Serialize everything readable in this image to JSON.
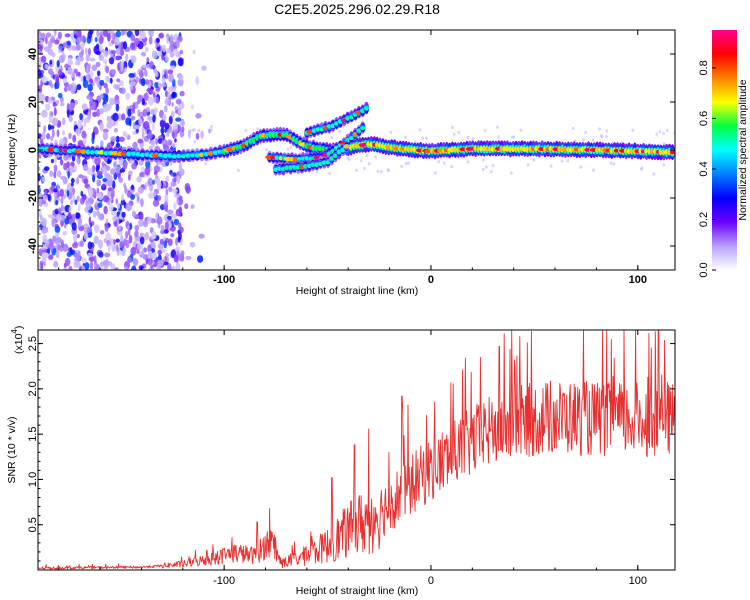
{
  "chart_data": [
    {
      "type": "heatmap",
      "title": "C2E5.2025.296.02.29.R18",
      "xlabel": "Height of straight line (km)",
      "ylabel": "Frequency (Hz)",
      "xlim": [
        -190,
        118
      ],
      "ylim": [
        -50,
        50
      ],
      "xticks": [
        -100,
        0,
        100
      ],
      "xtick_labels": [
        "-100",
        "0",
        "100"
      ],
      "yticks": [
        -40,
        -20,
        0,
        20,
        40
      ],
      "ytick_labels": [
        "-40",
        "-20",
        "0",
        "20",
        "40"
      ],
      "colorbar": {
        "label": "Normalized spectral amplitude",
        "range": [
          0,
          0.95
        ],
        "ticks": [
          0.0,
          0.2,
          0.4,
          0.6,
          0.8
        ],
        "tick_labels": [
          "0.0",
          "0.2",
          "0.4",
          "0.6",
          "0.8"
        ],
        "colormap": [
          "#ffffff",
          "#b8a0ff",
          "#6a00ff",
          "#0000ff",
          "#0080ff",
          "#00ffff",
          "#00ff40",
          "#ffff00",
          "#ff8000",
          "#ff0000",
          "#ff0090"
        ]
      },
      "ridge": [
        {
          "x": -190,
          "f": 0.5
        },
        {
          "x": -160,
          "f": -1.0
        },
        {
          "x": -140,
          "f": -2.0
        },
        {
          "x": -125,
          "f": -2.5
        },
        {
          "x": -110,
          "f": -2.0
        },
        {
          "x": -100,
          "f": -0.5
        },
        {
          "x": -90,
          "f": 2.0
        },
        {
          "x": -82,
          "f": 6.0
        },
        {
          "x": -70,
          "f": 6.5
        },
        {
          "x": -60,
          "f": 1.5
        },
        {
          "x": -50,
          "f": 0.0
        },
        {
          "x": -40,
          "f": 1.0
        },
        {
          "x": -30,
          "f": 2.5
        },
        {
          "x": -15,
          "f": 0.5
        },
        {
          "x": 0,
          "f": -0.5
        },
        {
          "x": 20,
          "f": 0.5
        },
        {
          "x": 50,
          "f": 0.5
        },
        {
          "x": 80,
          "f": 0.0
        },
        {
          "x": 118,
          "f": -1.0
        }
      ],
      "branches": [
        [
          {
            "x": -78,
            "f": -3
          },
          {
            "x": -65,
            "f": -4
          },
          {
            "x": -52,
            "f": -3
          },
          {
            "x": -40,
            "f": 4
          },
          {
            "x": -32,
            "f": 10
          }
        ],
        [
          {
            "x": -75,
            "f": -8
          },
          {
            "x": -62,
            "f": -7
          },
          {
            "x": -50,
            "f": -5
          },
          {
            "x": -40,
            "f": 2
          }
        ],
        [
          {
            "x": -60,
            "f": 7
          },
          {
            "x": -48,
            "f": 10
          },
          {
            "x": -38,
            "f": 14
          },
          {
            "x": -30,
            "f": 18
          }
        ]
      ]
    },
    {
      "type": "line",
      "xlabel": "Height of straight line (km)",
      "ylabel": "SNR (10 * v/v)",
      "y_multiplier": "(x10",
      "y_multiplier_exp": "4",
      "xlim": [
        -190,
        118
      ],
      "ylim": [
        0,
        2.65
      ],
      "xticks": [
        -100,
        0,
        100
      ],
      "xtick_labels": [
        "-100",
        "0",
        "100"
      ],
      "yticks": [
        0.5,
        1.0,
        1.5,
        2.0,
        2.5
      ],
      "ytick_labels": [
        "0.5",
        "1.0",
        "1.5",
        "2.0",
        "2.5"
      ],
      "color": "#e83030",
      "baseline": [
        {
          "x": -190,
          "y": 0.02
        },
        {
          "x": -140,
          "y": 0.03
        },
        {
          "x": -120,
          "y": 0.06
        },
        {
          "x": -105,
          "y": 0.12
        },
        {
          "x": -95,
          "y": 0.18
        },
        {
          "x": -85,
          "y": 0.15
        },
        {
          "x": -78,
          "y": 0.3
        },
        {
          "x": -72,
          "y": 0.07
        },
        {
          "x": -60,
          "y": 0.15
        },
        {
          "x": -50,
          "y": 0.25
        },
        {
          "x": -40,
          "y": 0.4
        },
        {
          "x": -30,
          "y": 0.52
        },
        {
          "x": -20,
          "y": 0.7
        },
        {
          "x": -10,
          "y": 0.9
        },
        {
          "x": 0,
          "y": 1.08
        },
        {
          "x": 10,
          "y": 1.22
        },
        {
          "x": 20,
          "y": 1.38
        },
        {
          "x": 30,
          "y": 1.5
        },
        {
          "x": 40,
          "y": 1.58
        },
        {
          "x": 50,
          "y": 1.62
        },
        {
          "x": 60,
          "y": 1.64
        },
        {
          "x": 70,
          "y": 1.64
        },
        {
          "x": 80,
          "y": 1.62
        },
        {
          "x": 90,
          "y": 1.62
        },
        {
          "x": 100,
          "y": 1.62
        },
        {
          "x": 110,
          "y": 1.62
        },
        {
          "x": 118,
          "y": 1.63
        }
      ],
      "peaks": [
        {
          "x": -84,
          "y": 0.53
        },
        {
          "x": -48,
          "y": 1.02
        },
        {
          "x": -37,
          "y": 1.38
        },
        {
          "x": -14,
          "y": 1.92
        },
        {
          "x": 33,
          "y": 2.47
        },
        {
          "x": 110,
          "y": 2.65
        }
      ]
    }
  ]
}
